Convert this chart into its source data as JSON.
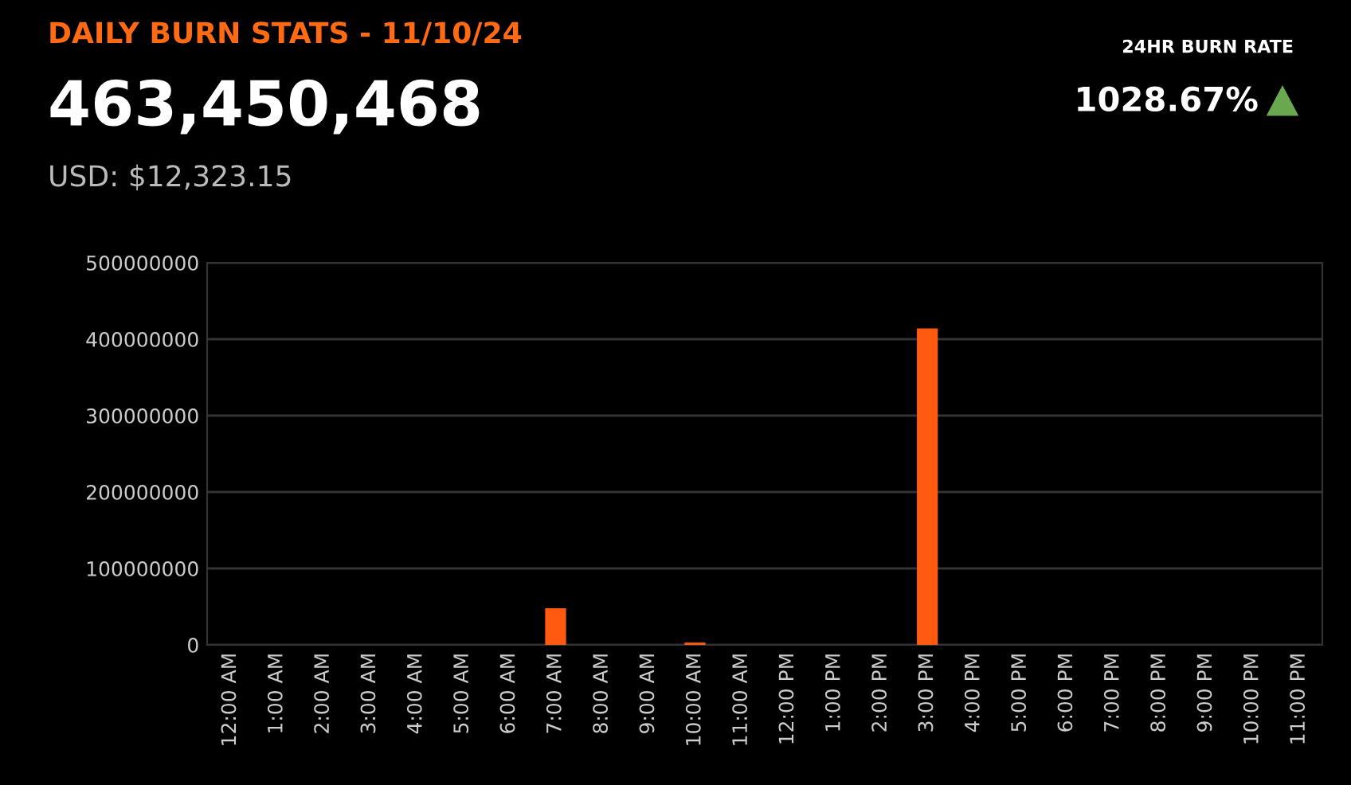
{
  "chart_data": {
    "type": "bar",
    "title": "DAILY BURN STATS - 11/10/24",
    "annotations": [
      "463,450,468",
      "USD: $12,323.15",
      "24HR BURN RATE",
      "1028.67%"
    ],
    "categories": [
      "12:00 AM",
      "1:00 AM",
      "2:00 AM",
      "3:00 AM",
      "4:00 AM",
      "5:00 AM",
      "6:00 AM",
      "7:00 AM",
      "8:00 AM",
      "9:00 AM",
      "10:00 AM",
      "11:00 AM",
      "12:00 PM",
      "1:00 PM",
      "2:00 PM",
      "3:00 PM",
      "4:00 PM",
      "5:00 PM",
      "6:00 PM",
      "7:00 PM",
      "8:00 PM",
      "9:00 PM",
      "10:00 PM",
      "11:00 PM"
    ],
    "values": [
      0,
      0,
      0,
      0,
      0,
      0,
      0,
      48000000,
      0,
      0,
      3000000,
      0,
      0,
      0,
      0,
      414000000,
      0,
      0,
      0,
      0,
      0,
      0,
      0,
      0
    ],
    "color": "#ff5a10",
    "ylim": [
      0,
      500000000
    ],
    "yticks": [
      0,
      100000000,
      200000000,
      300000000,
      400000000,
      500000000
    ],
    "grid": "y"
  }
}
